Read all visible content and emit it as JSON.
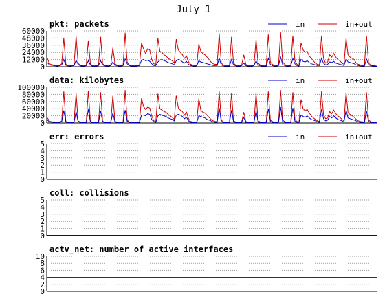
{
  "page": {
    "title": "July 1"
  },
  "colors": {
    "in": "#0000cc",
    "in_out": "#cc0000",
    "grid": "#9a9a9a",
    "axis": "#000000",
    "background": "#ffffff"
  },
  "chart_data": [
    {
      "type": "line",
      "name": "pkt",
      "title": "pkt: packets",
      "ylim": [
        0,
        60000
      ],
      "yticks": [
        0,
        12000,
        24000,
        36000,
        48000,
        60000
      ],
      "legend": [
        "in",
        "in+out"
      ],
      "legend_placement": "top-right",
      "grid": true,
      "series": [
        {
          "name": "in",
          "values": [
            7000,
            3000,
            2500,
            2000,
            1500,
            1000,
            2000,
            3000,
            12000,
            2500,
            1500,
            1000,
            1500,
            2000,
            11000,
            4000,
            1500,
            1000,
            1000,
            2000,
            10000,
            3000,
            1000,
            1000,
            1000,
            2000,
            10000,
            3000,
            1500,
            1000,
            1000,
            2000,
            8000,
            3000,
            1500,
            1000,
            1000,
            2000,
            13000,
            5000,
            2000,
            1000,
            1000,
            1000,
            1500,
            2000,
            11000,
            12000,
            10000,
            11000,
            9000,
            5000,
            2000,
            2000,
            8000,
            11000,
            12000,
            10000,
            9000,
            7000,
            6000,
            5000,
            3000,
            10000,
            12000,
            11000,
            8000,
            6000,
            9000,
            4000,
            2000,
            1500,
            1000,
            1500,
            10000,
            8000,
            7000,
            6000,
            5000,
            4000,
            3000,
            2000,
            2000,
            2000,
            14000,
            3000,
            1500,
            1000,
            1000,
            1000,
            12000,
            3000,
            1500,
            1000,
            1000,
            2000,
            6000,
            2000,
            1000,
            1000,
            1000,
            2000,
            10000,
            3000,
            1500,
            1000,
            1000,
            1000,
            14000,
            4000,
            2000,
            1000,
            1000,
            2000,
            16000,
            4000,
            2000,
            1000,
            1000,
            1500,
            14000,
            5000,
            2000,
            1000,
            12000,
            9000,
            8000,
            10000,
            7000,
            5000,
            4000,
            3000,
            2000,
            2000,
            14000,
            6000,
            3000,
            4000,
            8000,
            7000,
            9000,
            6000,
            5000,
            4000,
            3000,
            2000,
            13000,
            8000,
            7000,
            6000,
            5000,
            3000,
            2000,
            1500,
            1000,
            1000,
            13000,
            3000,
            2000,
            1000,
            1000,
            500
          ]
        },
        {
          "name": "in+out",
          "values": [
            14000,
            5000,
            3500,
            3000,
            2500,
            2000,
            3000,
            5000,
            48000,
            4000,
            2500,
            2000,
            2500,
            3000,
            52000,
            6000,
            2500,
            2000,
            2000,
            3000,
            44000,
            5000,
            2000,
            2000,
            2000,
            3000,
            50000,
            5000,
            2500,
            2000,
            2000,
            3000,
            32000,
            5000,
            2500,
            2000,
            2000,
            3000,
            57000,
            8000,
            3000,
            2000,
            2000,
            2000,
            2500,
            3000,
            40000,
            30000,
            22000,
            30000,
            28000,
            12000,
            5000,
            4000,
            48000,
            26000,
            24000,
            20000,
            18000,
            14000,
            12000,
            10000,
            6000,
            46000,
            28000,
            24000,
            20000,
            14000,
            18000,
            8000,
            4000,
            3000,
            2000,
            2500,
            38000,
            26000,
            22000,
            20000,
            16000,
            12000,
            8000,
            5000,
            4000,
            4000,
            56000,
            6000,
            3000,
            2000,
            2000,
            2000,
            50000,
            6000,
            3000,
            2000,
            2000,
            3000,
            20000,
            4000,
            2000,
            2000,
            2000,
            3000,
            46000,
            6000,
            3000,
            2000,
            2000,
            2000,
            54000,
            8000,
            4000,
            2000,
            2000,
            3000,
            58000,
            8000,
            4000,
            2000,
            2000,
            2500,
            52000,
            10000,
            4000,
            2000,
            40000,
            28000,
            24000,
            26000,
            18000,
            14000,
            10000,
            6000,
            4000,
            3000,
            52000,
            14000,
            6000,
            8000,
            20000,
            16000,
            22000,
            16000,
            12000,
            10000,
            6000,
            4000,
            48000,
            20000,
            16000,
            14000,
            12000,
            6000,
            4000,
            3000,
            2000,
            2000,
            52000,
            6000,
            3000,
            2000,
            2000,
            1000
          ]
        }
      ]
    },
    {
      "type": "line",
      "name": "data",
      "title": "data: kilobytes",
      "ylim": [
        0,
        100000
      ],
      "yticks": [
        0,
        20000,
        40000,
        60000,
        80000,
        100000
      ],
      "legend": [
        "in",
        "in+out"
      ],
      "legend_placement": "top-right",
      "grid": true,
      "series": [
        {
          "name": "in",
          "values": [
            8000,
            3000,
            2500,
            2000,
            1500,
            1000,
            2000,
            3000,
            35000,
            2500,
            1500,
            1000,
            1500,
            2000,
            32000,
            4000,
            1500,
            1000,
            1000,
            2000,
            38000,
            3000,
            1000,
            1000,
            1000,
            2000,
            34000,
            3000,
            1500,
            1000,
            1000,
            2000,
            28000,
            3000,
            1500,
            1000,
            1000,
            2000,
            36000,
            5000,
            2000,
            1000,
            1000,
            1000,
            1500,
            2000,
            22000,
            22000,
            20000,
            26000,
            24000,
            10000,
            3000,
            2000,
            20000,
            24000,
            22000,
            20000,
            18000,
            14000,
            12000,
            10000,
            6000,
            22000,
            24000,
            22000,
            18000,
            12000,
            16000,
            6000,
            2000,
            1500,
            1000,
            1500,
            20000,
            18000,
            16000,
            14000,
            10000,
            8000,
            6000,
            3000,
            2000,
            2000,
            42000,
            4000,
            1500,
            1000,
            1000,
            1000,
            36000,
            3000,
            1500,
            1000,
            1000,
            2000,
            16000,
            2000,
            1000,
            1000,
            1000,
            2000,
            34000,
            3000,
            1500,
            1000,
            1000,
            1000,
            40000,
            4000,
            2000,
            1000,
            1000,
            2000,
            44000,
            4000,
            2000,
            1000,
            1000,
            1500,
            42000,
            5000,
            2000,
            1000,
            22000,
            18000,
            16000,
            20000,
            14000,
            10000,
            8000,
            6000,
            3000,
            2000,
            38000,
            12000,
            6000,
            8000,
            18000,
            14000,
            20000,
            14000,
            10000,
            8000,
            6000,
            3000,
            36000,
            14000,
            12000,
            10000,
            8000,
            6000,
            3000,
            2000,
            1500,
            1000,
            34000,
            4000,
            2000,
            1000,
            1000,
            500
          ]
        },
        {
          "name": "in+out",
          "values": [
            14000,
            5000,
            3500,
            3000,
            2500,
            2000,
            3000,
            5000,
            88000,
            4000,
            2500,
            2000,
            2500,
            3000,
            84000,
            6000,
            2500,
            2000,
            2000,
            3000,
            90000,
            5000,
            2000,
            2000,
            2000,
            3000,
            86000,
            5000,
            2500,
            2000,
            2000,
            3000,
            78000,
            5000,
            2500,
            2000,
            2000,
            3000,
            92000,
            8000,
            3000,
            2000,
            2000,
            2000,
            2500,
            3000,
            70000,
            46000,
            38000,
            44000,
            42000,
            20000,
            6000,
            4000,
            82000,
            40000,
            36000,
            32000,
            30000,
            24000,
            20000,
            16000,
            10000,
            78000,
            42000,
            36000,
            32000,
            22000,
            30000,
            12000,
            4000,
            3000,
            2000,
            2500,
            68000,
            36000,
            30000,
            28000,
            22000,
            16000,
            10000,
            6000,
            4000,
            4000,
            88000,
            8000,
            3000,
            2000,
            2000,
            2000,
            84000,
            6000,
            3000,
            2000,
            2000,
            3000,
            30000,
            4000,
            2000,
            2000,
            2000,
            3000,
            84000,
            6000,
            3000,
            2000,
            2000,
            2000,
            88000,
            8000,
            4000,
            2000,
            2000,
            3000,
            92000,
            8000,
            4000,
            2000,
            2000,
            2500,
            86000,
            10000,
            4000,
            2000,
            66000,
            40000,
            34000,
            38000,
            28000,
            20000,
            14000,
            10000,
            6000,
            4000,
            88000,
            24000,
            12000,
            14000,
            32000,
            26000,
            36000,
            26000,
            20000,
            16000,
            10000,
            6000,
            86000,
            28000,
            24000,
            20000,
            16000,
            10000,
            6000,
            4000,
            3000,
            2000,
            86000,
            8000,
            4000,
            2000,
            2000,
            1000
          ]
        }
      ]
    },
    {
      "type": "line",
      "name": "err",
      "title": "err: errors",
      "ylim": [
        0,
        5
      ],
      "yticks": [
        0,
        1,
        2,
        3,
        4,
        5
      ],
      "legend": [
        "in",
        "in+out"
      ],
      "legend_placement": "top-right",
      "grid": true,
      "series": [
        {
          "name": "in",
          "constant": 0
        },
        {
          "name": "in+out",
          "constant": 0
        }
      ]
    },
    {
      "type": "line",
      "name": "coll",
      "title": "coll: collisions",
      "ylim": [
        0,
        5
      ],
      "yticks": [
        0,
        1,
        2,
        3,
        4,
        5
      ],
      "legend": [],
      "grid": true,
      "series": [
        {
          "name": "",
          "constant": 0
        }
      ]
    },
    {
      "type": "line",
      "name": "actv_net",
      "title": "actv_net: number of active interfaces",
      "ylim": [
        0,
        10
      ],
      "yticks": [
        0,
        2,
        4,
        6,
        8,
        10
      ],
      "legend": [],
      "grid": true,
      "series": [
        {
          "name": "",
          "constant": 4
        }
      ]
    }
  ]
}
